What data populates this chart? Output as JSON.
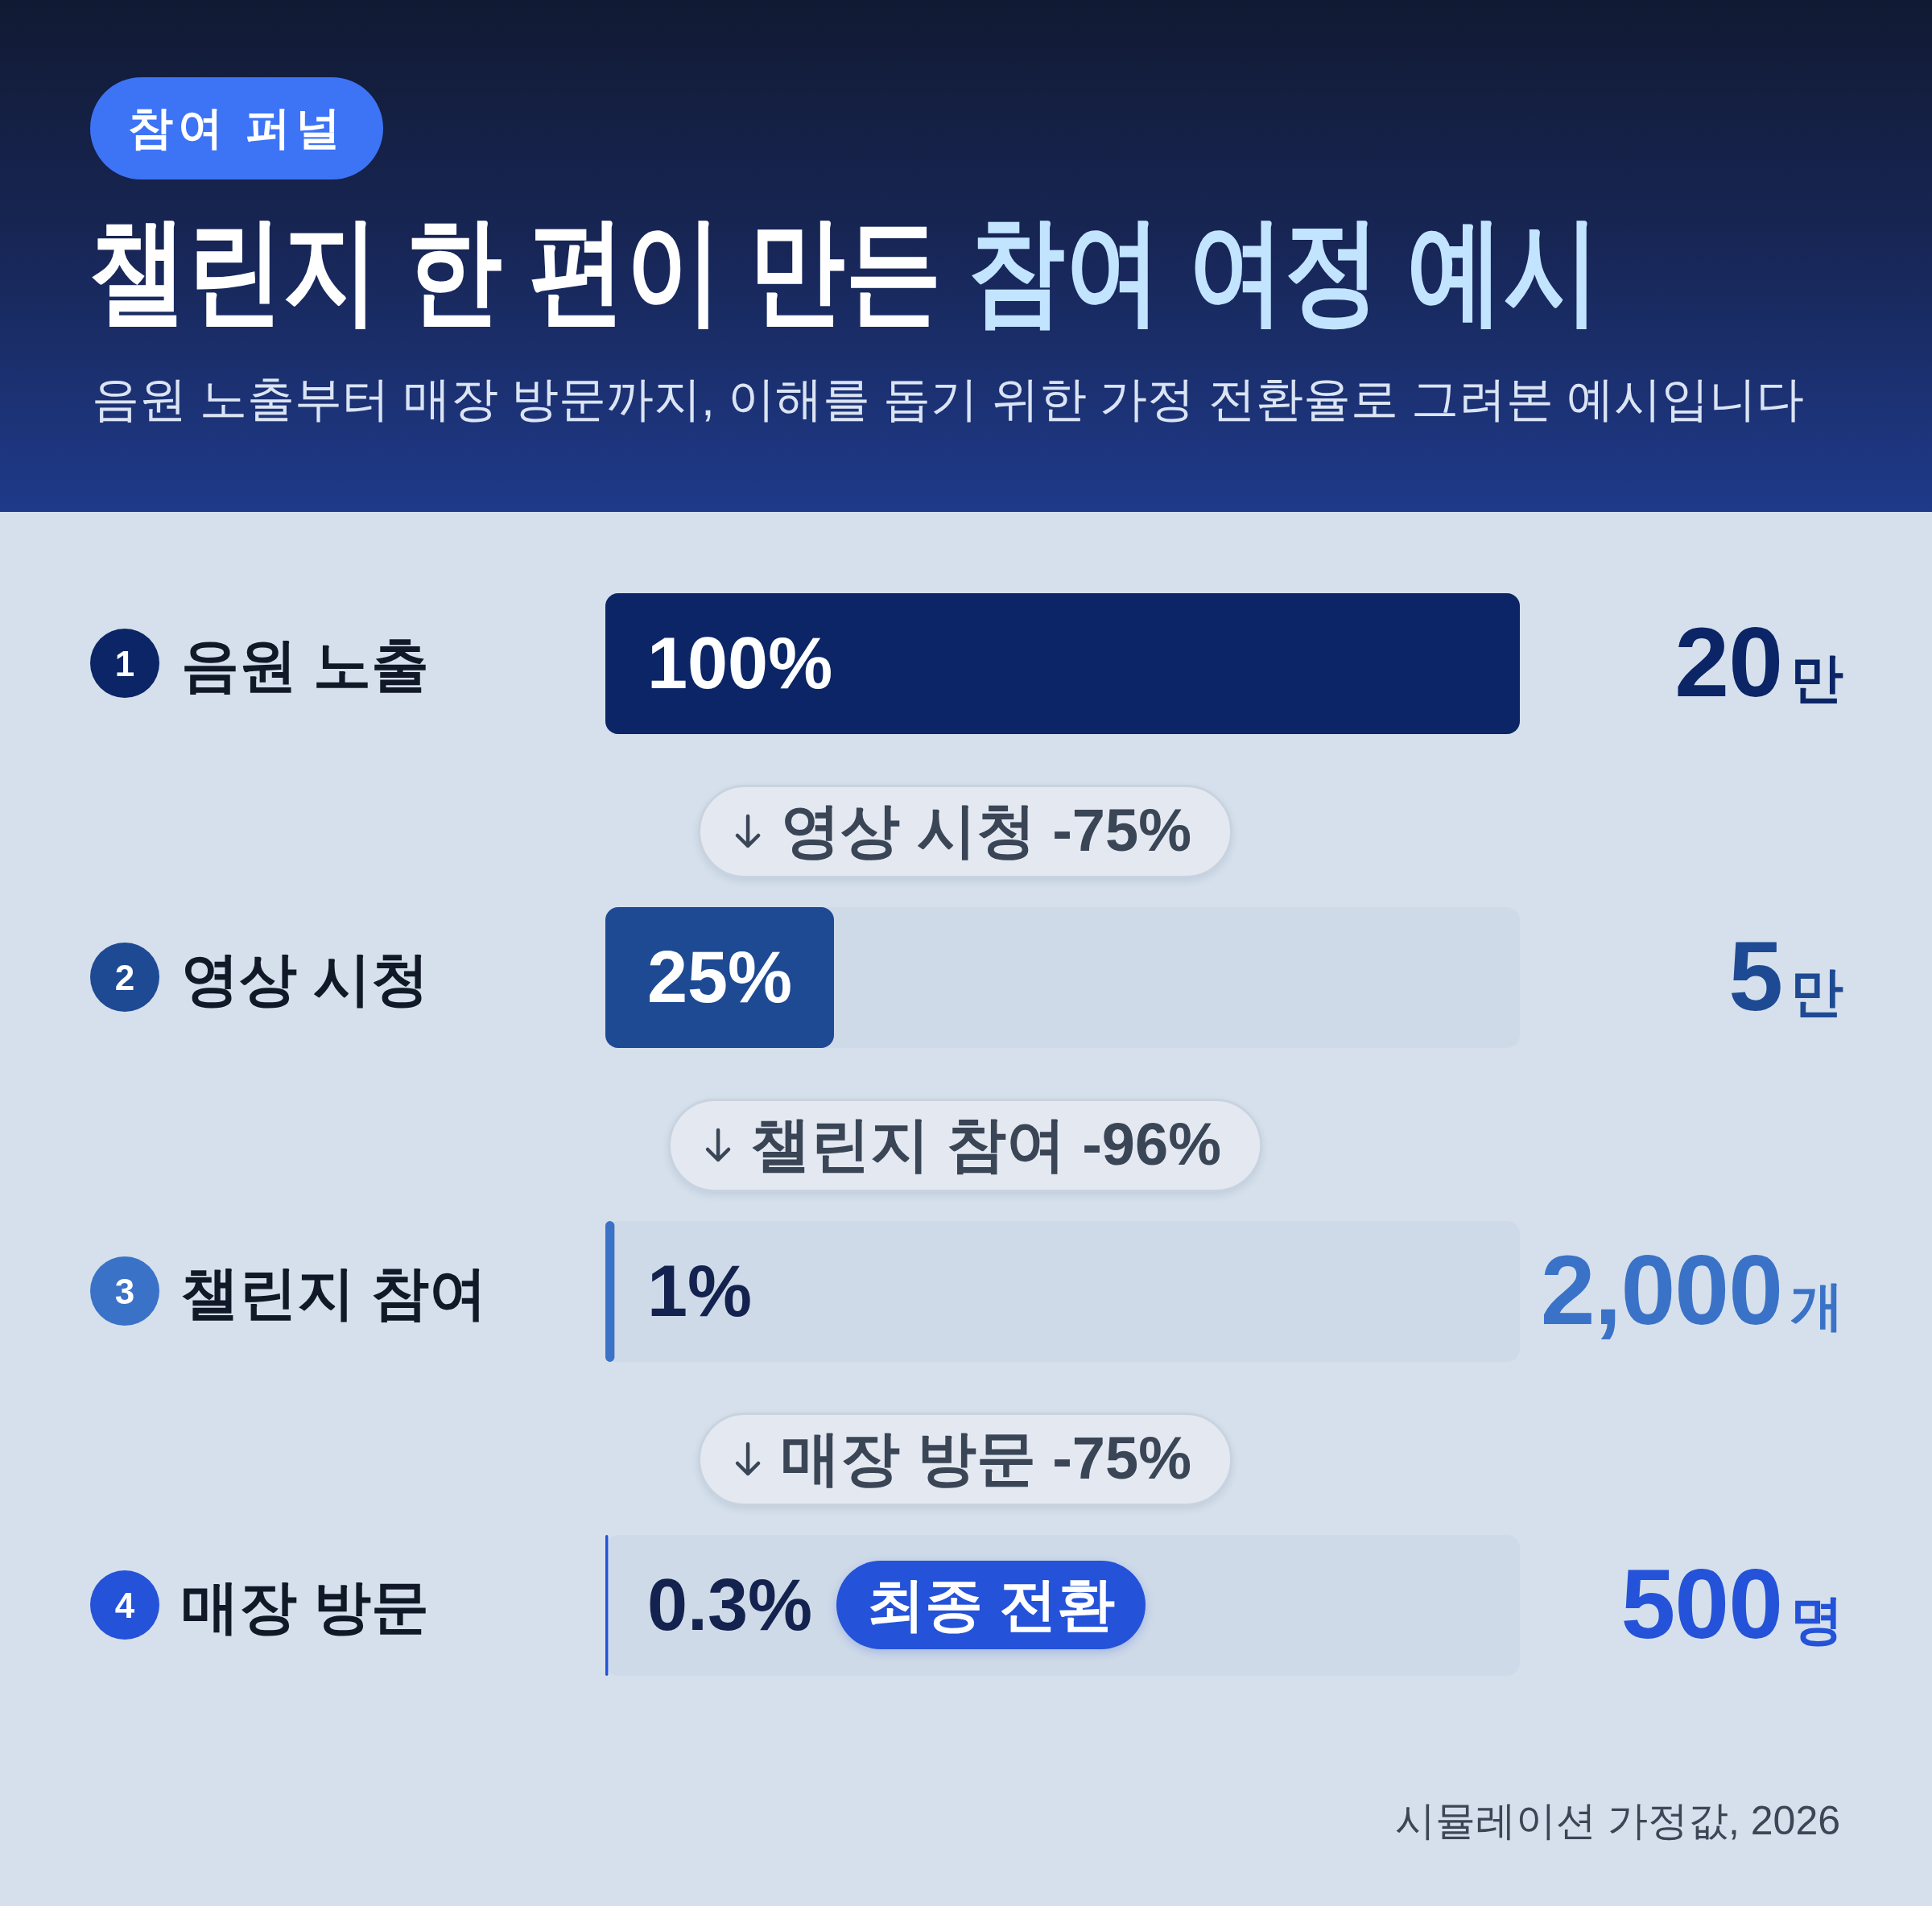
{
  "chart_data": {
    "type": "bar",
    "orientation": "horizontal",
    "title": "챌린지 한 편이 만든 참여 여정 예시",
    "subtitle": "음원 노출부터 매장 방문까지, 이해를 돕기 위한 가정 전환율로 그려본 예시입니다",
    "categories": [
      "음원 노출",
      "영상 시청",
      "챌린지 참여",
      "매장 방문"
    ],
    "values": [
      100,
      25,
      1,
      0.3
    ],
    "colors": [
      "#0b2566",
      "#1e4a94",
      "#3a72c8",
      "#2452d8"
    ],
    "value_labels": [
      "100%",
      "25%",
      "1%",
      "0.3%"
    ],
    "annotations": [
      "참여 퍼널",
      "1",
      "2",
      "3",
      "4",
      "영상 시청 -75%",
      "챌린지 참여 -96%",
      "매장 방문 -75%",
      "20만",
      "5만",
      "2,000개",
      "500명",
      "최종 전환",
      "시뮬레이션 가정값, 2026"
    ]
  }
}
